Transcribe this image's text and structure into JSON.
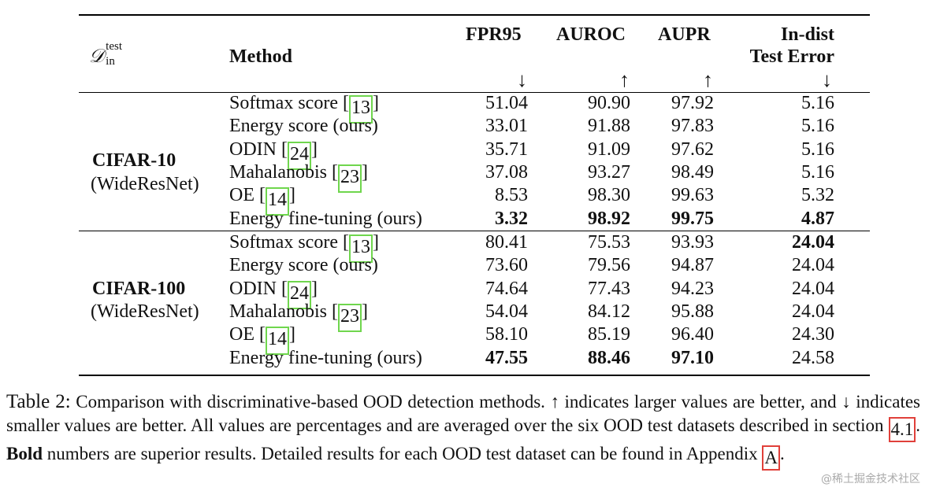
{
  "header": {
    "din_symbol": "𝒟",
    "din_sup": "test",
    "din_sub": "in",
    "method": "Method",
    "fpr": "FPR95",
    "auroc": "AUROC",
    "aupr": "AUPR",
    "err_line1": "In-dist",
    "err_line2": "Test Error",
    "fpr_arrow": "↓",
    "auroc_arrow": "↑",
    "aupr_arrow": "↑",
    "err_arrow": "↓"
  },
  "groups": [
    {
      "dataset": "CIFAR-10",
      "model": "(WideResNet)",
      "rows": [
        {
          "pre": "Softmax score [",
          "ref": "13",
          "post": "]",
          "fpr": "51.04",
          "auroc": "90.90",
          "aupr": "97.92",
          "err": "5.16"
        },
        {
          "pre": "Energy score (ours)",
          "ref": "",
          "post": "",
          "fpr": "33.01",
          "auroc": "91.88",
          "aupr": "97.83",
          "err": "5.16"
        },
        {
          "pre": "ODIN [",
          "ref": "24",
          "post": "]",
          "fpr": "35.71",
          "auroc": "91.09",
          "aupr": "97.62",
          "err": "5.16"
        },
        {
          "pre": "Mahalanobis [",
          "ref": "23",
          "post": "]",
          "fpr": "37.08",
          "auroc": "93.27",
          "aupr": "98.49",
          "err": "5.16"
        },
        {
          "pre": "OE [",
          "ref": "14",
          "post": "]",
          "fpr": "8.53",
          "auroc": "98.30",
          "aupr": "99.63",
          "err": "5.32"
        },
        {
          "pre": "Energy fine-tuning (ours)",
          "ref": "",
          "post": "",
          "fpr": "3.32",
          "auroc": "98.92",
          "aupr": "99.75",
          "err": "4.87"
        }
      ]
    },
    {
      "dataset": "CIFAR-100",
      "model": "(WideResNet)",
      "rows": [
        {
          "pre": "Softmax score [",
          "ref": "13",
          "post": "]",
          "fpr": "80.41",
          "auroc": "75.53",
          "aupr": "93.93",
          "err": "24.04"
        },
        {
          "pre": "Energy score (ours)",
          "ref": "",
          "post": "",
          "fpr": "73.60",
          "auroc": "79.56",
          "aupr": "94.87",
          "err": "24.04"
        },
        {
          "pre": "ODIN [",
          "ref": "24",
          "post": "]",
          "fpr": "74.64",
          "auroc": "77.43",
          "aupr": "94.23",
          "err": "24.04"
        },
        {
          "pre": "Mahalanobis [",
          "ref": "23",
          "post": "]",
          "fpr": "54.04",
          "auroc": "84.12",
          "aupr": "95.88",
          "err": "24.04"
        },
        {
          "pre": "OE [",
          "ref": "14",
          "post": "]",
          "fpr": "58.10",
          "auroc": "85.19",
          "aupr": "96.40",
          "err": "24.30"
        },
        {
          "pre": "Energy fine-tuning (ours)",
          "ref": "",
          "post": "",
          "fpr": "47.55",
          "auroc": "88.46",
          "aupr": "97.10",
          "err": "24.58"
        }
      ]
    }
  ],
  "bold_cells": {
    "g0r5": [
      "fpr",
      "auroc",
      "aupr",
      "err"
    ],
    "g1r0": [
      "err"
    ],
    "g1r5": [
      "fpr",
      "auroc",
      "aupr"
    ]
  },
  "caption": {
    "label": "Table 2:",
    "p1": "Comparison with discriminative-based OOD detection methods. ↑ indicates larger values are better, and ↓ indicates smaller values are better. All values are percentages and are averaged over the six OOD test datasets described in section ",
    "ref_section": "4.1",
    "p2": ". ",
    "bold": "Bold",
    "p3": " numbers are superior results. Detailed results for each OOD test dataset can be found in Appendix ",
    "ref_appendix": "A",
    "p4": "."
  },
  "watermark": "@稀土掘金技术社区",
  "colors": {
    "cite_box": "#6fd64d",
    "caption_ref_box": "#e0403a"
  }
}
